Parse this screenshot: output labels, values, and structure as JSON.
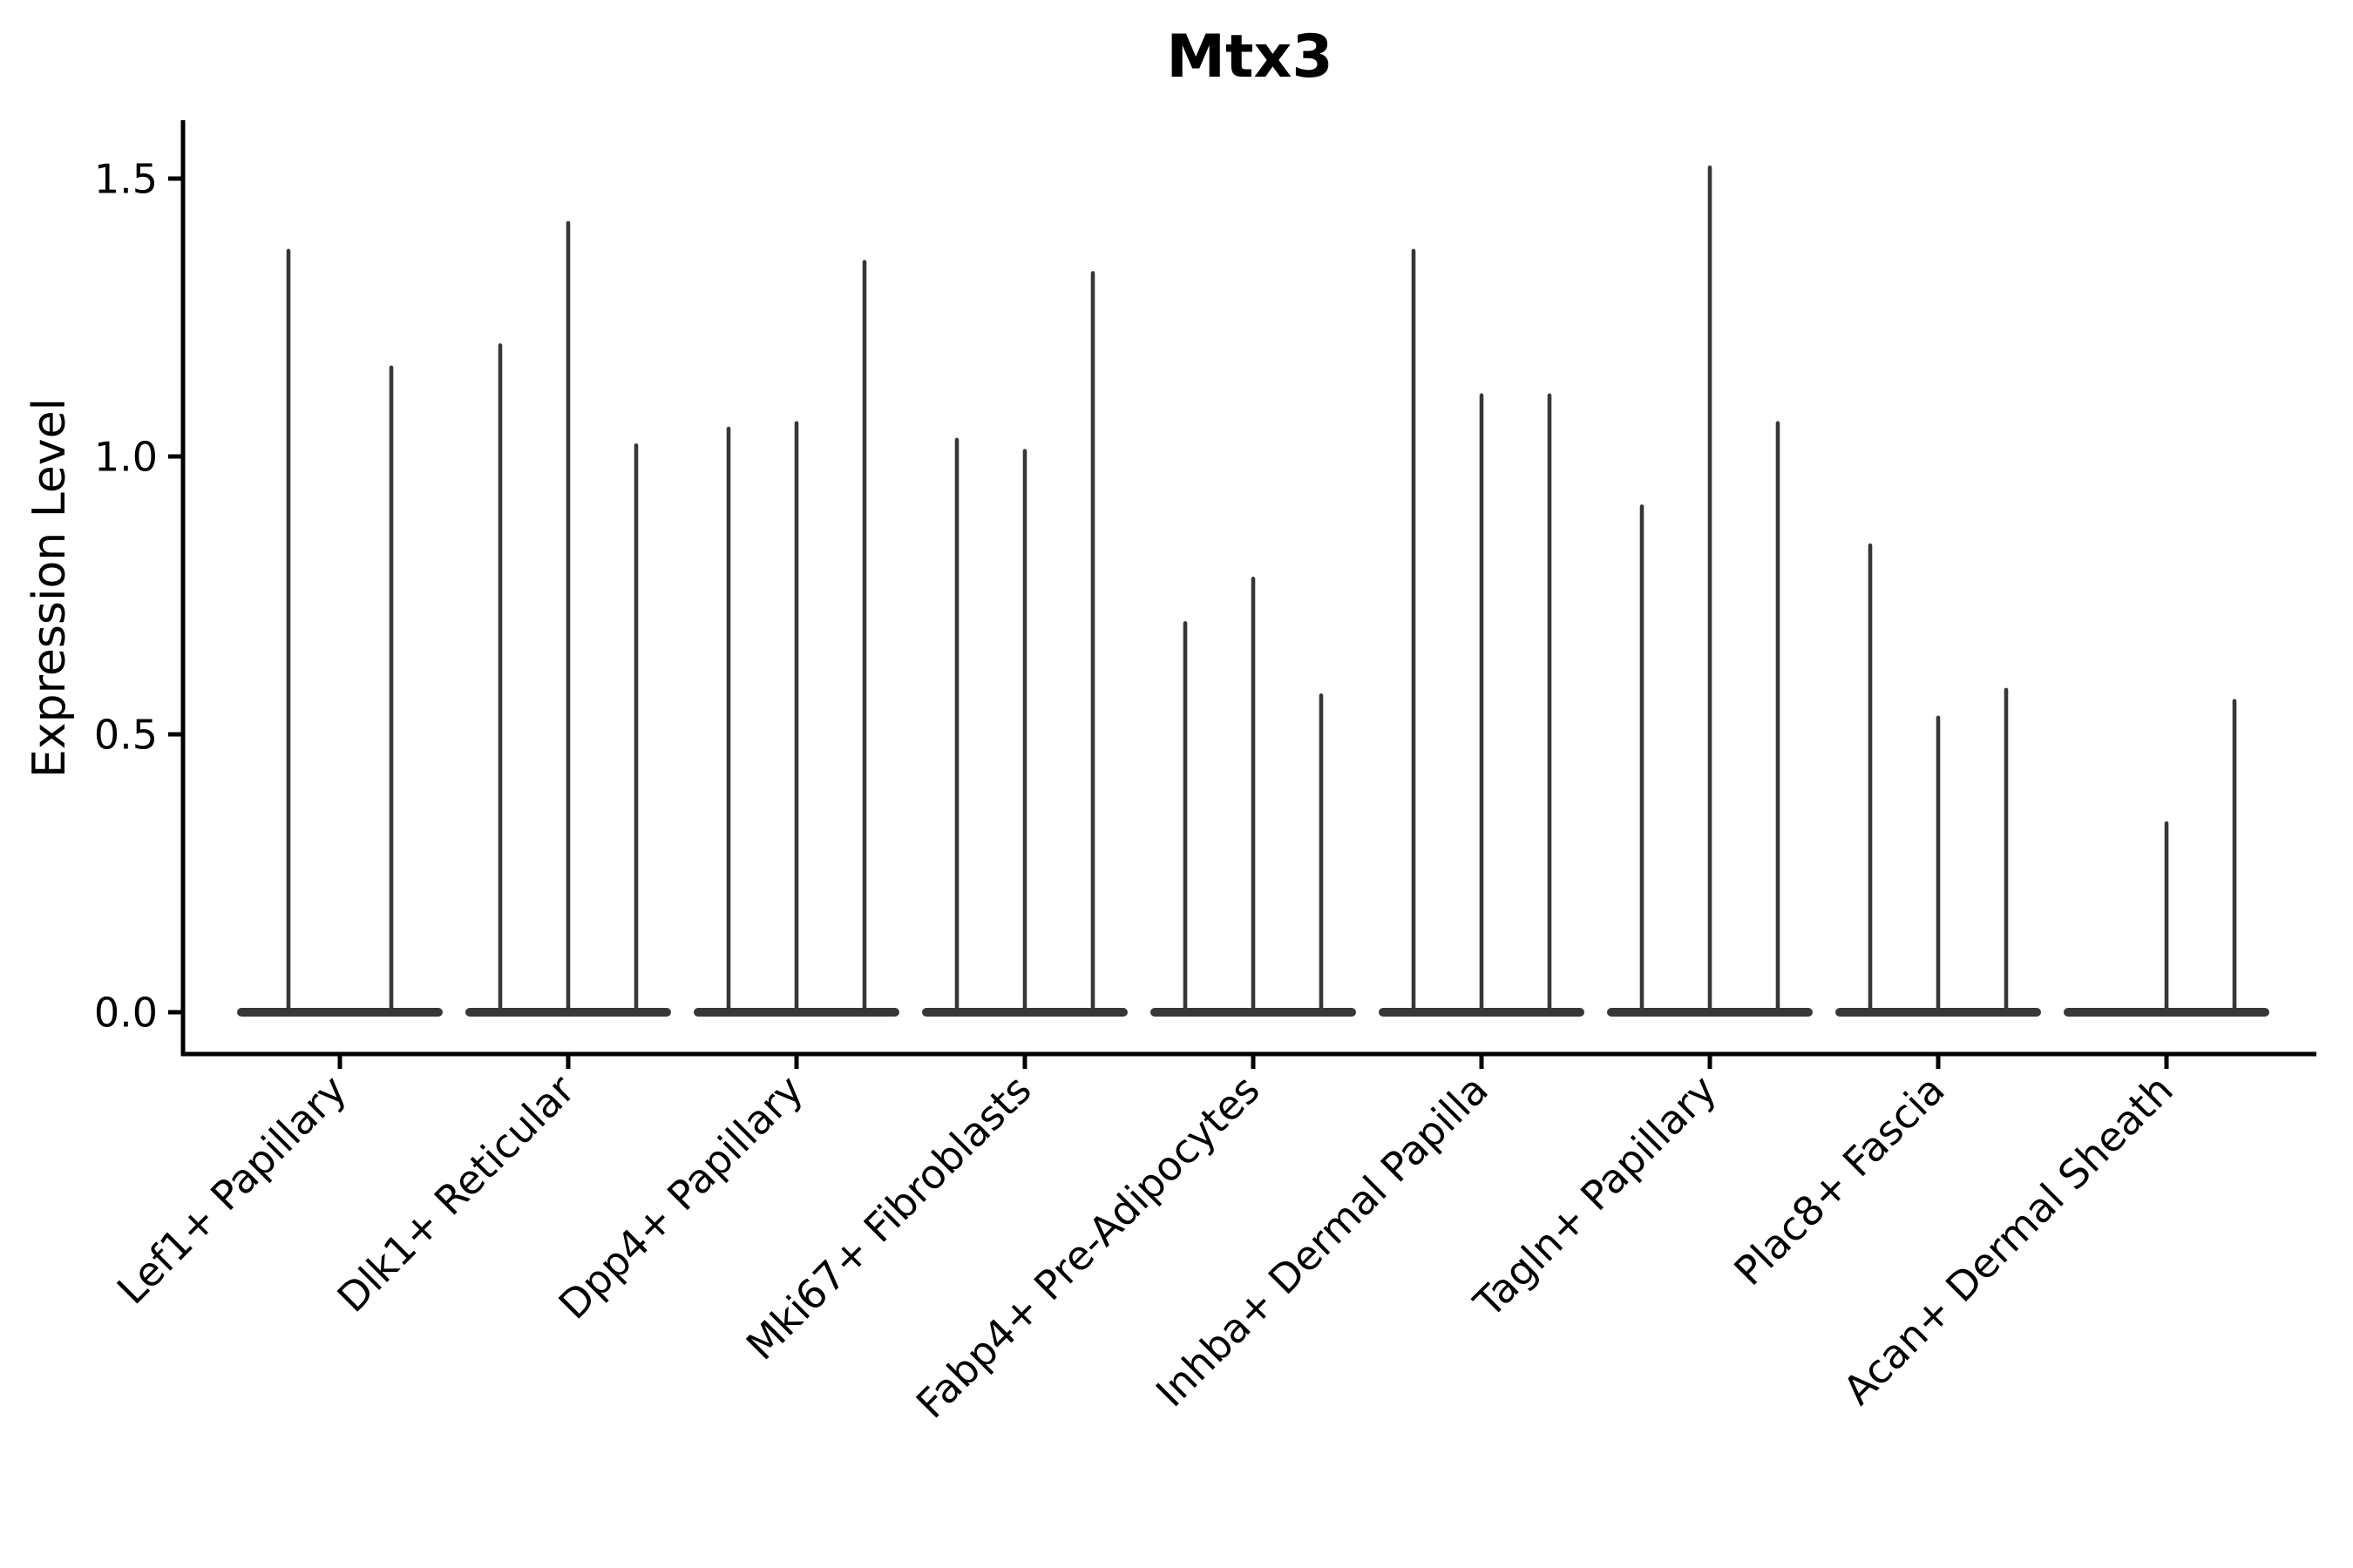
{
  "chart_data": {
    "type": "violin",
    "title": "Mtx3",
    "ylabel": "Expression Level",
    "ylim": [
      -0.08,
      1.6
    ],
    "grid": false,
    "legend": null,
    "yticks": [
      {
        "value": 0.0,
        "label": "0.0"
      },
      {
        "value": 0.5,
        "label": "0.5"
      },
      {
        "value": 1.0,
        "label": "1.0"
      },
      {
        "value": 1.5,
        "label": "1.5"
      }
    ],
    "categories": [
      {
        "label": "Lef1+ Papillary",
        "violin_peaks": [
          1.37,
          1.16
        ]
      },
      {
        "label": "Dlk1+ Reticular",
        "violin_peaks": [
          1.2,
          1.42,
          1.02
        ]
      },
      {
        "label": "Dpp4+ Papillary",
        "violin_peaks": [
          1.05,
          1.06,
          1.35
        ]
      },
      {
        "label": "Mki67+ Fibroblasts",
        "violin_peaks": [
          1.03,
          1.01,
          1.33
        ]
      },
      {
        "label": "Fabp4+ Pre-Adipocytes",
        "violin_peaks": [
          0.7,
          0.78,
          0.57
        ]
      },
      {
        "label": "Inhba+ Dermal Papilla",
        "violin_peaks": [
          1.37,
          1.11,
          1.11
        ]
      },
      {
        "label": "Tagln+ Papillary",
        "violin_peaks": [
          0.91,
          1.52,
          1.06
        ]
      },
      {
        "label": "Plac8+ Fascia",
        "violin_peaks": [
          0.84,
          0.53,
          0.58
        ]
      },
      {
        "label": "Acan+ Dermal Sheath",
        "violin_peaks": [
          0.0,
          0.34,
          0.56
        ]
      }
    ],
    "colors": {
      "violin": "#373737",
      "axis": "#000000",
      "text": "#000000",
      "background": "#ffffff"
    }
  }
}
